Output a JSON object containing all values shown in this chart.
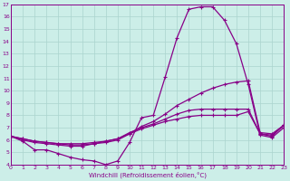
{
  "xlabel": "Windchill (Refroidissement éolien,°C)",
  "bg_color": "#cceee8",
  "grid_color": "#aad4ce",
  "line_color": "#880088",
  "xlim": [
    0,
    23
  ],
  "ylim": [
    4,
    17
  ],
  "yticks": [
    4,
    5,
    6,
    7,
    8,
    9,
    10,
    11,
    12,
    13,
    14,
    15,
    16,
    17
  ],
  "xticks": [
    0,
    1,
    2,
    3,
    4,
    5,
    6,
    7,
    8,
    9,
    10,
    11,
    12,
    13,
    14,
    15,
    16,
    17,
    18,
    19,
    20,
    21,
    22,
    23
  ],
  "lines": [
    [
      0,
      6.3,
      1,
      5.9,
      2,
      5.2,
      3,
      5.2,
      4,
      4.9,
      5,
      4.6,
      6,
      4.4,
      7,
      4.3,
      8,
      4.0,
      9,
      4.3,
      10,
      5.8,
      11,
      7.8,
      12,
      8.0,
      13,
      11.1,
      14,
      14.3,
      15,
      16.6,
      16,
      16.8,
      17,
      16.8,
      18,
      15.7,
      19,
      13.8,
      20,
      10.5,
      21,
      6.4,
      22,
      6.2,
      23,
      7.0
    ],
    [
      0,
      6.3,
      1,
      6.0,
      2,
      5.8,
      3,
      5.7,
      4,
      5.6,
      5,
      5.5,
      6,
      5.5,
      7,
      5.7,
      8,
      5.8,
      9,
      6.0,
      10,
      6.5,
      11,
      7.1,
      12,
      7.5,
      13,
      8.1,
      14,
      8.8,
      15,
      9.3,
      16,
      9.8,
      17,
      10.2,
      18,
      10.5,
      19,
      10.7,
      20,
      10.8,
      21,
      6.6,
      22,
      6.5,
      23,
      7.2
    ],
    [
      0,
      6.3,
      1,
      6.1,
      2,
      5.9,
      3,
      5.8,
      4,
      5.7,
      5,
      5.6,
      6,
      5.6,
      7,
      5.7,
      8,
      5.9,
      9,
      6.1,
      10,
      6.6,
      11,
      7.0,
      12,
      7.3,
      13,
      7.7,
      14,
      8.1,
      15,
      8.4,
      16,
      8.5,
      17,
      8.5,
      18,
      8.5,
      19,
      8.5,
      20,
      8.5,
      21,
      6.5,
      22,
      6.3,
      23,
      7.2
    ],
    [
      0,
      6.3,
      1,
      6.1,
      2,
      5.9,
      3,
      5.8,
      4,
      5.7,
      5,
      5.7,
      6,
      5.7,
      7,
      5.8,
      8,
      5.9,
      9,
      6.1,
      10,
      6.5,
      11,
      6.9,
      12,
      7.2,
      13,
      7.5,
      14,
      7.7,
      15,
      7.9,
      16,
      8.0,
      17,
      8.0,
      18,
      8.0,
      19,
      8.0,
      20,
      8.3,
      21,
      6.5,
      22,
      6.4,
      23,
      7.2
    ]
  ]
}
